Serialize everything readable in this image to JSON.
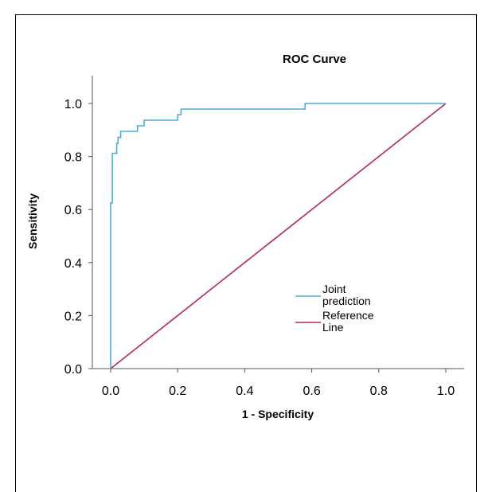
{
  "chart_data": {
    "type": "line",
    "title": "ROC Curve",
    "xlabel": "1 - Specificity",
    "ylabel": "Sensitivity",
    "xlim": [
      0.0,
      1.0
    ],
    "ylim": [
      0.0,
      1.0
    ],
    "xticks": [
      "0.0",
      "0.2",
      "0.4",
      "0.6",
      "0.8",
      "1.0"
    ],
    "yticks": [
      "0.0",
      "0.2",
      "0.4",
      "0.6",
      "0.8",
      "1.0"
    ],
    "grid": false,
    "legend_position": "lower-right",
    "series": [
      {
        "name": "Joint prediction",
        "color": "#4aaee3",
        "points": [
          [
            0.0,
            0.0
          ],
          [
            0.0,
            0.625
          ],
          [
            0.005,
            0.625
          ],
          [
            0.005,
            0.812
          ],
          [
            0.018,
            0.812
          ],
          [
            0.018,
            0.85
          ],
          [
            0.022,
            0.85
          ],
          [
            0.022,
            0.872
          ],
          [
            0.03,
            0.872
          ],
          [
            0.03,
            0.895
          ],
          [
            0.08,
            0.895
          ],
          [
            0.08,
            0.916
          ],
          [
            0.1,
            0.916
          ],
          [
            0.1,
            0.937
          ],
          [
            0.2,
            0.937
          ],
          [
            0.2,
            0.958
          ],
          [
            0.21,
            0.958
          ],
          [
            0.21,
            0.979
          ],
          [
            0.58,
            0.979
          ],
          [
            0.58,
            1.0
          ],
          [
            1.0,
            1.0
          ]
        ]
      },
      {
        "name": "Reference Line",
        "color": "#b5265e",
        "points": [
          [
            0.0,
            0.0
          ],
          [
            1.0,
            1.0
          ]
        ]
      }
    ],
    "legend_entries": [
      {
        "lines": [
          "Joint",
          "prediction"
        ],
        "color": "#4aaee3"
      },
      {
        "lines": [
          "Reference",
          "Line"
        ],
        "color": "#b5265e"
      }
    ]
  }
}
